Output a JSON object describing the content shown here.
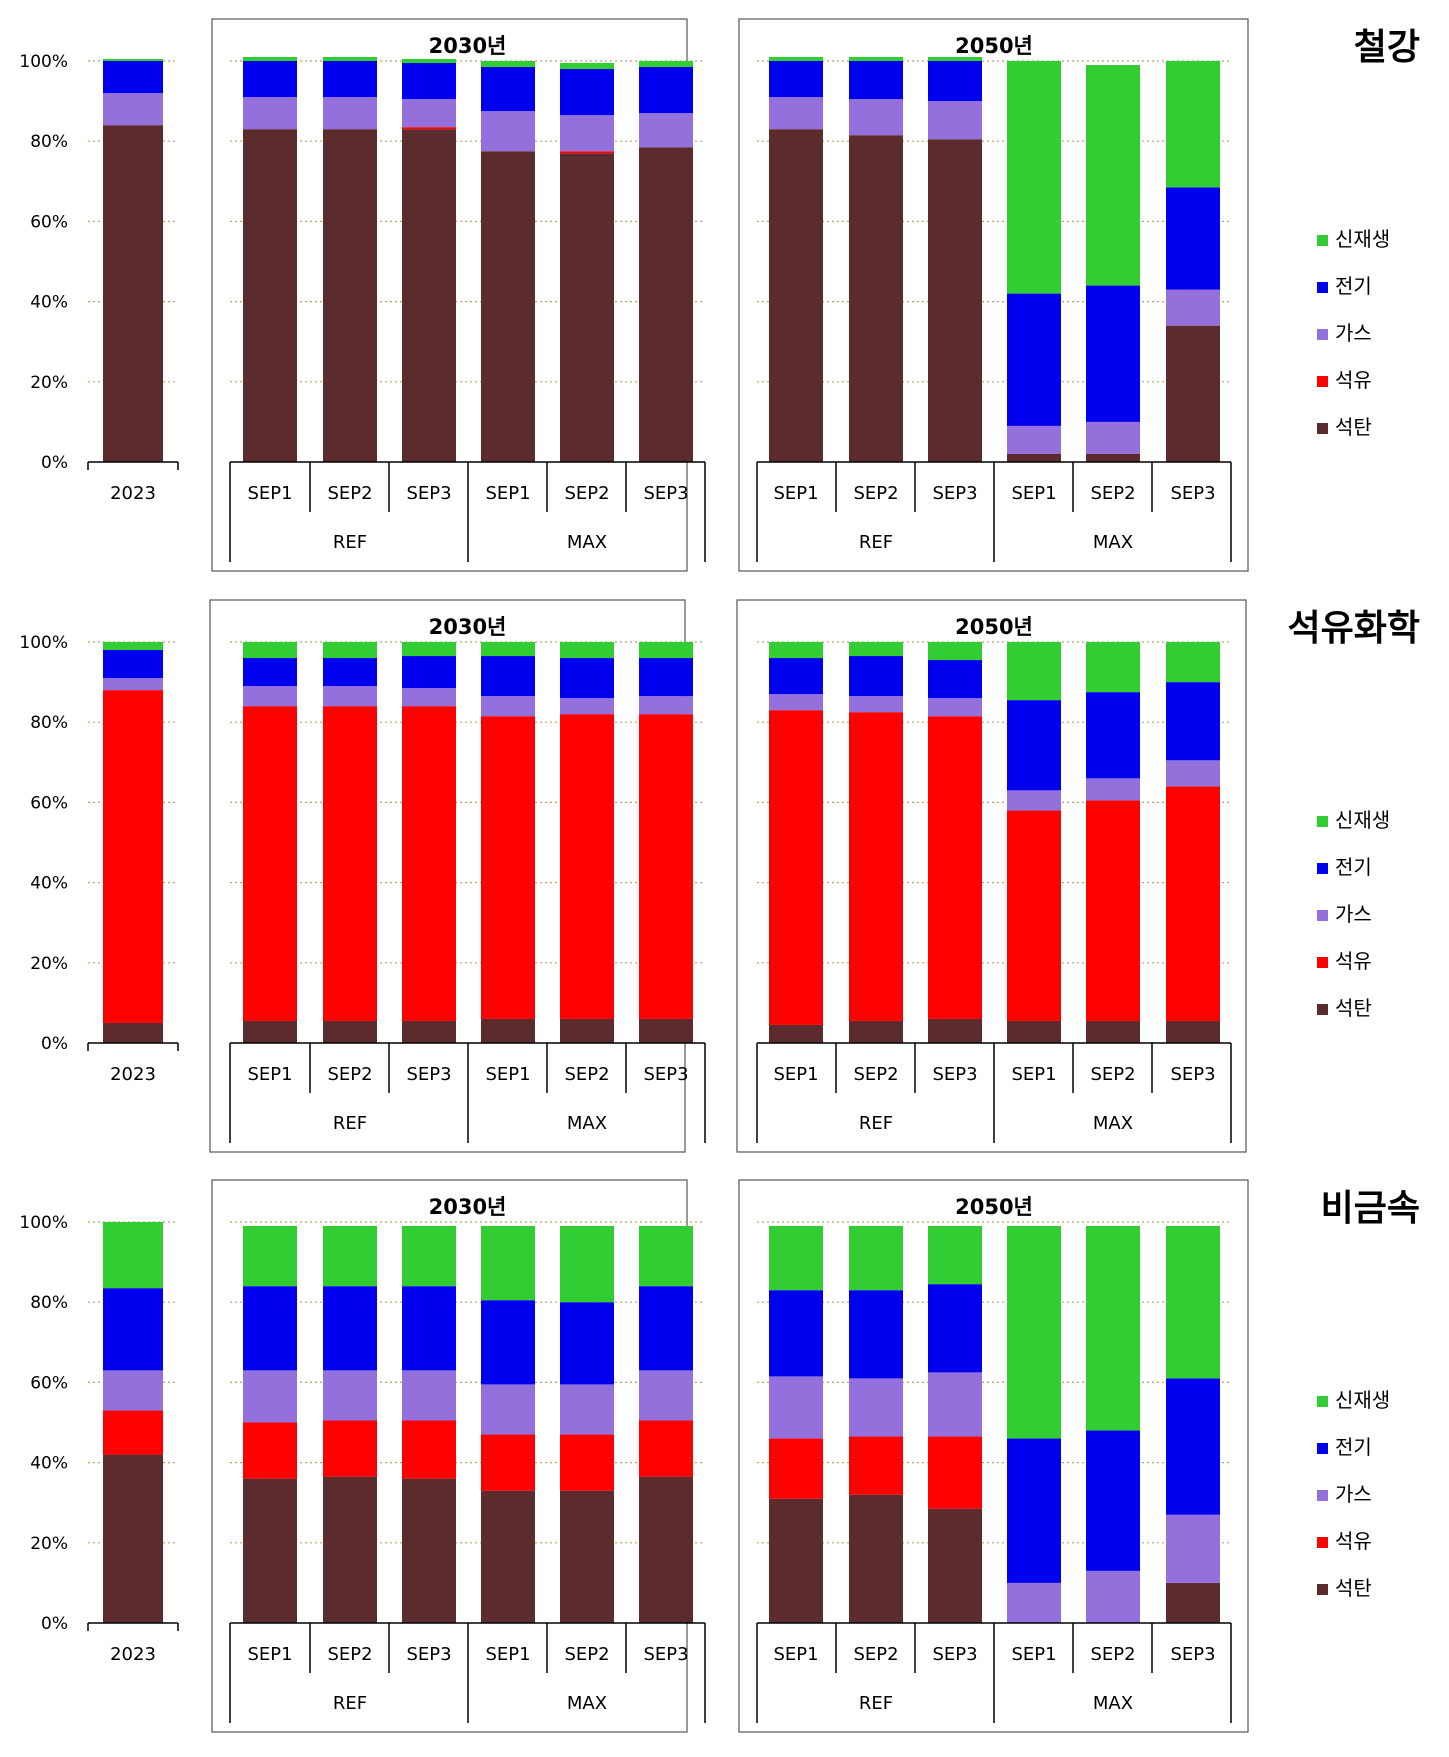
{
  "legend_labels": [
    "신재생",
    "전기",
    "가스",
    "석유",
    "석탄"
  ],
  "colors": {
    "석탄": "#5c2b2e",
    "석유": "#ff0000",
    "가스": "#9370db",
    "전기": "#0000ee",
    "신재생": "#32cd32",
    "grid": "#b5a36b"
  },
  "y_tick_labels": [
    "0%",
    "20%",
    "40%",
    "60%",
    "80%",
    "100%"
  ],
  "chart_data": [
    {
      "type": "bar",
      "stacked": true,
      "sector": "철강",
      "ylim": [
        0,
        100
      ],
      "series_order": [
        "석탄",
        "석유",
        "가스",
        "전기",
        "신재생"
      ],
      "panels": [
        {
          "title": "",
          "categories": [
            "2023"
          ],
          "groups": [],
          "values": [
            [
              84,
              0,
              8,
              8,
              0.5
            ]
          ]
        },
        {
          "title": "2030년",
          "categories": [
            "SEP1",
            "SEP2",
            "SEP3",
            "SEP1",
            "SEP2",
            "SEP3"
          ],
          "groups": [
            "REF",
            "MAX"
          ],
          "values": [
            [
              83,
              0,
              8,
              9,
              1
            ],
            [
              83,
              0,
              8,
              9,
              1
            ],
            [
              83,
              0.5,
              7,
              9,
              1
            ],
            [
              77.5,
              0,
              10,
              11,
              1.5
            ],
            [
              77,
              0.5,
              9,
              11.5,
              1.5
            ],
            [
              78.5,
              0,
              8.5,
              11.5,
              1.5
            ]
          ]
        },
        {
          "title": "2050년",
          "categories": [
            "SEP1",
            "SEP2",
            "SEP3",
            "SEP1",
            "SEP2",
            "SEP3"
          ],
          "groups": [
            "REF",
            "MAX"
          ],
          "values": [
            [
              83,
              0,
              8,
              9,
              1
            ],
            [
              81.5,
              0,
              9,
              9.5,
              1
            ],
            [
              80.5,
              0,
              9.5,
              10,
              1
            ],
            [
              2,
              0,
              7,
              33,
              58
            ],
            [
              2,
              0,
              8,
              34,
              55
            ],
            [
              34,
              0,
              9,
              25.5,
              31.5
            ]
          ]
        }
      ]
    },
    {
      "type": "bar",
      "stacked": true,
      "sector": "석유화학",
      "ylim": [
        0,
        100
      ],
      "series_order": [
        "석탄",
        "석유",
        "가스",
        "전기",
        "신재생"
      ],
      "panels": [
        {
          "title": "",
          "categories": [
            "2023"
          ],
          "groups": [],
          "values": [
            [
              5,
              83,
              3,
              7,
              2
            ]
          ]
        },
        {
          "title": "2030년",
          "categories": [
            "SEP1",
            "SEP2",
            "SEP3",
            "SEP1",
            "SEP2",
            "SEP3"
          ],
          "groups": [
            "REF",
            "MAX"
          ],
          "values": [
            [
              5.5,
              78.5,
              5,
              7,
              4
            ],
            [
              5.5,
              78.5,
              5,
              7,
              4
            ],
            [
              5.5,
              78.5,
              4.5,
              8,
              3.5
            ],
            [
              6,
              75.5,
              5,
              10,
              3.5
            ],
            [
              6,
              76,
              4,
              10,
              4
            ],
            [
              6,
              76,
              4.5,
              9.5,
              4
            ]
          ]
        },
        {
          "title": "2050년",
          "categories": [
            "SEP1",
            "SEP2",
            "SEP3",
            "SEP1",
            "SEP2",
            "SEP3"
          ],
          "groups": [
            "REF",
            "MAX"
          ],
          "values": [
            [
              4.5,
              78.5,
              4,
              9,
              4
            ],
            [
              5.5,
              77,
              4,
              10,
              3.5
            ],
            [
              6,
              75.5,
              4.5,
              9.5,
              4.5
            ],
            [
              5.5,
              52.5,
              5,
              22.5,
              14.5
            ],
            [
              5.5,
              55,
              5.5,
              21.5,
              12.5
            ],
            [
              5.5,
              58.5,
              6.5,
              19.5,
              10
            ]
          ]
        }
      ]
    },
    {
      "type": "bar",
      "stacked": true,
      "sector": "비금속",
      "ylim": [
        0,
        100
      ],
      "series_order": [
        "석탄",
        "석유",
        "가스",
        "전기",
        "신재생"
      ],
      "panels": [
        {
          "title": "",
          "categories": [
            "2023"
          ],
          "groups": [],
          "values": [
            [
              42,
              11,
              10,
              20.5,
              16.5
            ]
          ]
        },
        {
          "title": "2030년",
          "categories": [
            "SEP1",
            "SEP2",
            "SEP3",
            "SEP1",
            "SEP2",
            "SEP3"
          ],
          "groups": [
            "REF",
            "MAX"
          ],
          "values": [
            [
              36,
              14,
              13,
              21,
              15
            ],
            [
              36.5,
              14,
              12.5,
              21,
              15
            ],
            [
              36,
              14.5,
              12.5,
              21,
              15
            ],
            [
              33,
              14,
              12.5,
              21,
              18.5
            ],
            [
              33,
              14,
              12.5,
              20.5,
              19
            ],
            [
              36.5,
              14,
              12.5,
              21,
              15
            ]
          ]
        },
        {
          "title": "2050년",
          "categories": [
            "SEP1",
            "SEP2",
            "SEP3",
            "SEP1",
            "SEP2",
            "SEP3"
          ],
          "groups": [
            "REF",
            "MAX"
          ],
          "values": [
            [
              31,
              15,
              15.5,
              21.5,
              16
            ],
            [
              32,
              14.5,
              14.5,
              22,
              16
            ],
            [
              28.5,
              18,
              16,
              22,
              14.5
            ],
            [
              0,
              0,
              10,
              36,
              53
            ],
            [
              0,
              0,
              13,
              35,
              51
            ],
            [
              10,
              0,
              17,
              34,
              38
            ]
          ]
        }
      ]
    }
  ]
}
